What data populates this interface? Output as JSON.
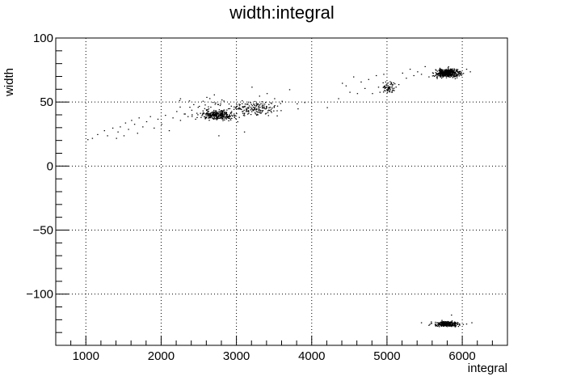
{
  "chart_data": {
    "type": "scatter",
    "title": "width:integral",
    "xlabel": "integral",
    "ylabel": "width",
    "xlim": [
      600,
      6600
    ],
    "ylim": [
      -140,
      100
    ],
    "x_ticks": [
      1000,
      2000,
      3000,
      4000,
      5000,
      6000
    ],
    "x_tick_labels": [
      "1000",
      "2000",
      "3000",
      "4000",
      "5000",
      "6000"
    ],
    "y_ticks": [
      -100,
      -50,
      0,
      50,
      100
    ],
    "y_tick_labels": [
      "−100",
      "−50",
      "0",
      "50",
      "100"
    ],
    "grid": true,
    "marker_color": "#000000",
    "series": [
      {
        "clusters": [
          {
            "x_center": 2750,
            "x_spread": 160,
            "y_center": 40,
            "y_spread": 2.5,
            "count": 260
          },
          {
            "x_center": 3250,
            "x_spread": 200,
            "y_center": 45,
            "y_spread": 4,
            "count": 120
          },
          {
            "x_center": 5800,
            "x_spread": 120,
            "y_center": 73,
            "y_spread": 2.5,
            "count": 420
          },
          {
            "x_center": 5030,
            "x_spread": 60,
            "y_center": 62,
            "y_spread": 3,
            "count": 60
          },
          {
            "x_center": 5780,
            "x_spread": 120,
            "y_center": -123,
            "y_spread": 1.5,
            "count": 260
          },
          {
            "x_center": 2900,
            "x_spread": 500,
            "y_center": 45,
            "y_spread": 6,
            "count": 90
          }
        ],
        "points": [
          [
            1020,
            21
          ],
          [
            1080,
            22
          ],
          [
            1150,
            25
          ],
          [
            1240,
            28
          ],
          [
            1280,
            24
          ],
          [
            1350,
            30
          ],
          [
            1400,
            22
          ],
          [
            1420,
            27
          ],
          [
            1450,
            31
          ],
          [
            1500,
            24
          ],
          [
            1520,
            34
          ],
          [
            1560,
            29
          ],
          [
            1600,
            36
          ],
          [
            1640,
            33
          ],
          [
            1680,
            26
          ],
          [
            1700,
            38
          ],
          [
            1750,
            31
          ],
          [
            1800,
            35
          ],
          [
            1850,
            39
          ],
          [
            1900,
            30
          ],
          [
            1950,
            37
          ],
          [
            2000,
            33
          ],
          [
            2050,
            40
          ],
          [
            2100,
            28
          ],
          [
            2150,
            38
          ],
          [
            2200,
            43
          ],
          [
            2250,
            36
          ],
          [
            2300,
            41
          ],
          [
            2350,
            39
          ],
          [
            2400,
            44
          ],
          [
            2450,
            37
          ],
          [
            2500,
            47
          ],
          [
            2550,
            51
          ],
          [
            2600,
            54
          ],
          [
            2700,
            56
          ],
          [
            2800,
            52
          ],
          [
            2760,
            24
          ],
          [
            3100,
            27
          ],
          [
            3200,
            62
          ],
          [
            3300,
            55
          ],
          [
            3400,
            57
          ],
          [
            3500,
            53
          ],
          [
            3600,
            51
          ],
          [
            3700,
            60
          ],
          [
            3800,
            49
          ],
          [
            3900,
            50
          ],
          [
            4200,
            46
          ],
          [
            4350,
            53
          ],
          [
            4400,
            65
          ],
          [
            4450,
            63
          ],
          [
            4500,
            58
          ],
          [
            4550,
            70
          ],
          [
            4600,
            57
          ],
          [
            4650,
            66
          ],
          [
            4700,
            61
          ],
          [
            4750,
            68
          ],
          [
            4800,
            57
          ],
          [
            4850,
            71
          ],
          [
            4880,
            62
          ],
          [
            4900,
            58
          ],
          [
            4950,
            72
          ],
          [
            5150,
            64
          ],
          [
            5200,
            73
          ],
          [
            5250,
            69
          ],
          [
            5300,
            76
          ],
          [
            5350,
            71
          ],
          [
            5400,
            74
          ],
          [
            5450,
            72
          ],
          [
            5500,
            78
          ],
          [
            5550,
            70
          ],
          [
            6050,
            76
          ],
          [
            6100,
            74
          ],
          [
            5450,
            -122
          ],
          [
            5550,
            -124
          ],
          [
            5850,
            -116
          ],
          [
            6050,
            -123
          ],
          [
            6120,
            -122
          ]
        ]
      }
    ]
  }
}
